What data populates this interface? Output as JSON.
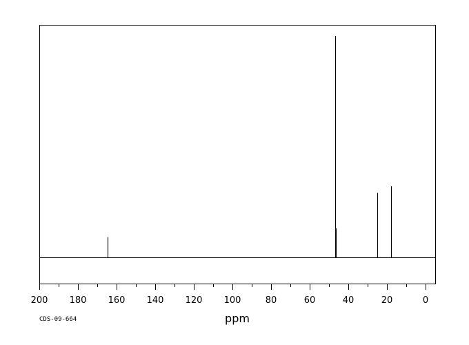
{
  "chart_data": {
    "type": "line",
    "spectrum_kind": "13C NMR stick spectrum",
    "xlabel": "ppm",
    "ylabel": "",
    "x_reversed": true,
    "xlim": [
      200,
      -5
    ],
    "ylim": [
      -0.12,
      1.05
    ],
    "grid": false,
    "legend": "none",
    "ticks_major": [
      200,
      180,
      160,
      140,
      120,
      100,
      80,
      60,
      40,
      20,
      0
    ],
    "ticks_minor_step": 10,
    "baseline": 0,
    "peaks": [
      {
        "x": 164.5,
        "y": 0.09
      },
      {
        "x": 46.9,
        "y": 1.0
      },
      {
        "x": 46.6,
        "y": 0.13
      },
      {
        "x": 25.0,
        "y": 0.29
      },
      {
        "x": 17.7,
        "y": 0.32
      }
    ],
    "footnote": "CDS-09-664",
    "colors": {
      "line": "#000000",
      "frame": "#000000",
      "background": "#ffffff"
    }
  }
}
